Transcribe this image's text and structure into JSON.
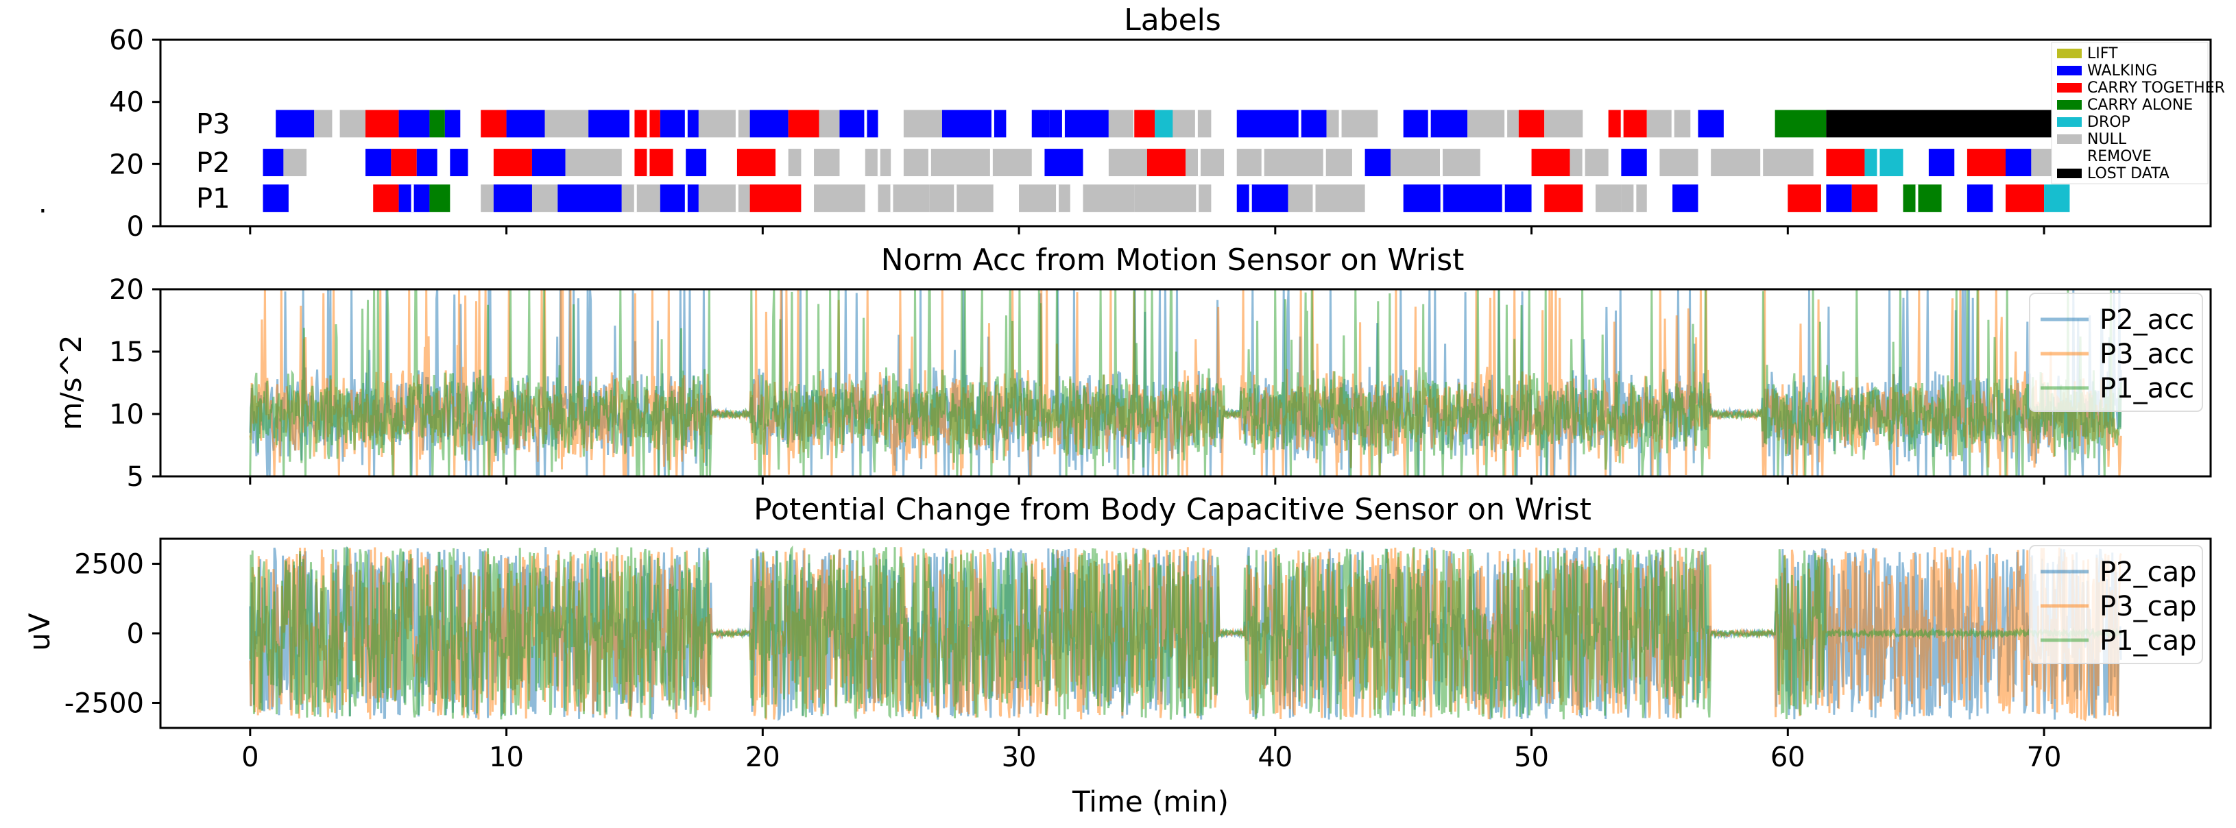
{
  "chart_data": [
    {
      "type": "timeline",
      "title": "Labels",
      "xlabel": "Time (min)",
      "ylabel": "",
      "ylim": [
        0,
        60
      ],
      "yticks": [
        "0",
        "20",
        "40",
        "60"
      ],
      "xlim": [
        -3.5,
        76.5
      ],
      "rows": [
        {
          "name": "P3",
          "y": 33,
          "segments": [
            [
              1.0,
              2.5,
              "WALKING"
            ],
            [
              2.5,
              3.2,
              "NULL"
            ],
            [
              3.5,
              4.5,
              "NULL"
            ],
            [
              4.5,
              5.8,
              "RED"
            ],
            [
              5.8,
              7.0,
              "WALKING"
            ],
            [
              7.0,
              7.6,
              "CARRY ALONE"
            ],
            [
              7.6,
              8.2,
              "WALKING"
            ],
            [
              9.0,
              10.0,
              "RED"
            ],
            [
              10.0,
              11.5,
              "WALKING"
            ],
            [
              11.5,
              13.2,
              "NULL"
            ],
            [
              13.2,
              14.8,
              "WALKING"
            ],
            [
              15.0,
              16.0,
              "RED"
            ],
            [
              16.0,
              17.5,
              "WALKING"
            ],
            [
              17.5,
              19.5,
              "NULL"
            ],
            [
              19.5,
              21.0,
              "WALKING"
            ],
            [
              21.0,
              22.2,
              "RED"
            ],
            [
              22.2,
              23.0,
              "NULL"
            ],
            [
              23.0,
              24.5,
              "WALKING"
            ],
            [
              25.5,
              27.0,
              "NULL"
            ],
            [
              27.0,
              29.5,
              "WALKING"
            ],
            [
              30.5,
              31.2,
              "WALKING"
            ],
            [
              31.2,
              33.5,
              "WALKING"
            ],
            [
              33.5,
              37.5,
              "NULL"
            ],
            [
              34.5,
              35.3,
              "RED"
            ],
            [
              35.3,
              36.0,
              "DROP"
            ],
            [
              38.5,
              42.0,
              "WALKING"
            ],
            [
              42.0,
              44.0,
              "NULL"
            ],
            [
              45.0,
              47.5,
              "WALKING"
            ],
            [
              47.5,
              49.5,
              "NULL"
            ],
            [
              49.5,
              50.5,
              "RED"
            ],
            [
              50.5,
              52.0,
              "NULL"
            ],
            [
              53.0,
              54.5,
              "RED"
            ],
            [
              54.5,
              56.2,
              "NULL"
            ],
            [
              56.5,
              57.5,
              "WALKING"
            ],
            [
              59.5,
              61.5,
              "CARRY ALONE"
            ],
            [
              61.5,
              72.0,
              "LOST DATA"
            ]
          ]
        },
        {
          "name": "P2",
          "y": 20.5,
          "segments": [
            [
              0.5,
              1.3,
              "WALKING"
            ],
            [
              1.3,
              2.2,
              "NULL"
            ],
            [
              4.5,
              5.5,
              "WALKING"
            ],
            [
              5.5,
              6.5,
              "RED"
            ],
            [
              6.5,
              7.3,
              "WALKING"
            ],
            [
              7.8,
              8.5,
              "WALKING"
            ],
            [
              9.5,
              11.0,
              "RED"
            ],
            [
              11.0,
              12.3,
              "WALKING"
            ],
            [
              12.3,
              14.5,
              "NULL"
            ],
            [
              15.0,
              16.5,
              "RED"
            ],
            [
              17.0,
              17.8,
              "WALKING"
            ],
            [
              19.0,
              20.5,
              "RED"
            ],
            [
              21.0,
              21.5,
              "NULL"
            ],
            [
              22.0,
              23.0,
              "NULL"
            ],
            [
              24.0,
              25.0,
              "NULL"
            ],
            [
              25.5,
              30.5,
              "NULL"
            ],
            [
              31.0,
              32.5,
              "WALKING"
            ],
            [
              33.5,
              35.0,
              "NULL"
            ],
            [
              35.0,
              36.5,
              "RED"
            ],
            [
              36.5,
              38.0,
              "NULL"
            ],
            [
              38.5,
              43.0,
              "NULL"
            ],
            [
              43.5,
              44.5,
              "WALKING"
            ],
            [
              44.5,
              48.0,
              "NULL"
            ],
            [
              50.0,
              51.5,
              "RED"
            ],
            [
              51.5,
              53.0,
              "NULL"
            ],
            [
              53.5,
              54.5,
              "WALKING"
            ],
            [
              55.0,
              56.5,
              "NULL"
            ],
            [
              57.0,
              61.0,
              "NULL"
            ],
            [
              61.5,
              63.0,
              "RED"
            ],
            [
              63.0,
              64.5,
              "DROP"
            ],
            [
              65.5,
              66.5,
              "WALKING"
            ],
            [
              67.0,
              68.5,
              "RED"
            ],
            [
              68.5,
              69.5,
              "WALKING"
            ],
            [
              69.5,
              72.0,
              "NULL"
            ]
          ]
        },
        {
          "name": "P1",
          "y": 9,
          "segments": [
            [
              0.5,
              1.5,
              "WALKING"
            ],
            [
              4.8,
              5.8,
              "RED"
            ],
            [
              5.8,
              7.0,
              "WALKING"
            ],
            [
              7.0,
              7.8,
              "CARRY ALONE"
            ],
            [
              9.0,
              12.0,
              "NULL"
            ],
            [
              9.5,
              11.0,
              "WALKING"
            ],
            [
              12.0,
              14.5,
              "WALKING"
            ],
            [
              14.5,
              16.0,
              "NULL"
            ],
            [
              16.0,
              17.5,
              "WALKING"
            ],
            [
              17.5,
              19.5,
              "NULL"
            ],
            [
              19.5,
              21.5,
              "RED"
            ],
            [
              22.0,
              24.0,
              "NULL"
            ],
            [
              24.5,
              26.5,
              "NULL"
            ],
            [
              26.5,
              29.0,
              "NULL"
            ],
            [
              30.0,
              32.0,
              "NULL"
            ],
            [
              32.5,
              34.5,
              "NULL"
            ],
            [
              34.5,
              37.5,
              "NULL"
            ],
            [
              38.5,
              40.5,
              "WALKING"
            ],
            [
              40.5,
              43.5,
              "NULL"
            ],
            [
              45.0,
              50.0,
              "WALKING"
            ],
            [
              50.5,
              52.0,
              "RED"
            ],
            [
              52.5,
              53.5,
              "NULL"
            ],
            [
              53.5,
              54.5,
              "NULL"
            ],
            [
              55.5,
              56.5,
              "WALKING"
            ],
            [
              60.0,
              61.3,
              "RED"
            ],
            [
              61.5,
              62.5,
              "WALKING"
            ],
            [
              62.5,
              63.5,
              "RED"
            ],
            [
              64.5,
              66.0,
              "CARRY ALONE"
            ],
            [
              67.0,
              68.0,
              "WALKING"
            ],
            [
              68.5,
              70.0,
              "RED"
            ],
            [
              70.0,
              71.0,
              "DROP"
            ]
          ]
        }
      ],
      "legend": [
        {
          "label": "LIFT",
          "color": "#bcbd22"
        },
        {
          "label": "WALKING",
          "color": "#0000ff"
        },
        {
          "label": "CARRY TOGETHER",
          "color": "#ff0000"
        },
        {
          "label": "CARRY ALONE",
          "color": "#008000"
        },
        {
          "label": "DROP",
          "color": "#17becf"
        },
        {
          "label": "NULL",
          "color": "#bfbfbf"
        },
        {
          "label": "REMOVE",
          "color": "#ffffff"
        },
        {
          "label": "LOST DATA",
          "color": "#000000"
        }
      ],
      "legend_position": "top-right"
    },
    {
      "type": "line",
      "title": "Norm Acc from Motion Sensor on Wrist",
      "xlabel": "Time (min)",
      "ylabel": "m/s^2",
      "ylim": [
        5,
        20
      ],
      "yticks": [
        "5",
        "10",
        "15",
        "20"
      ],
      "xlim": [
        -3.5,
        76.5
      ],
      "x_range": [
        0,
        73
      ],
      "baseline": 10,
      "series": [
        {
          "name": "P2_acc",
          "color": "#1f77b4"
        },
        {
          "name": "P3_acc",
          "color": "#ff7f0e"
        },
        {
          "name": "P1_acc",
          "color": "#2ca02c"
        }
      ],
      "legend_position": "top-right"
    },
    {
      "type": "line",
      "title": "Potential Change from Body Capacitive Sensor on Wrist",
      "xlabel": "Time (min)",
      "ylabel": "uV",
      "ylim": [
        -3400,
        3400
      ],
      "yticks": [
        "-2500",
        "0",
        "2500"
      ],
      "ytick_values": [
        -2500,
        0,
        2500
      ],
      "xlim": [
        -3.5,
        76.5
      ],
      "x_range": [
        0,
        73
      ],
      "baseline": 0,
      "series": [
        {
          "name": "P2_cap",
          "color": "#1f77b4"
        },
        {
          "name": "P3_cap",
          "color": "#ff7f0e"
        },
        {
          "name": "P1_cap",
          "color": "#2ca02c"
        }
      ],
      "legend_position": "top-right"
    }
  ],
  "shared_xticks": [
    "0",
    "10",
    "20",
    "30",
    "40",
    "50",
    "60",
    "70"
  ],
  "shared_xtick_values": [
    0,
    10,
    20,
    30,
    40,
    50,
    60,
    70
  ],
  "xlabel": "Time (min)",
  "stray_mark": "."
}
